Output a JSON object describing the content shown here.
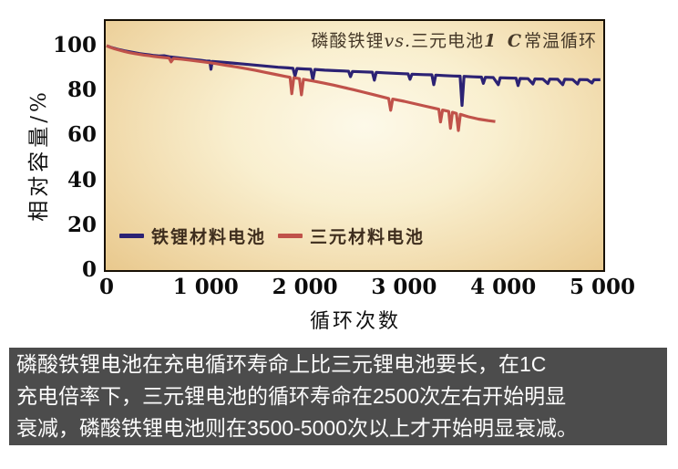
{
  "chart": {
    "title_parts": {
      "pre": "磷酸铁锂",
      "vs": "vs.",
      "mid": "三元电池",
      "bold": "1 C",
      "post": "常温循环"
    },
    "y_axis_title": "相对容量/%",
    "x_axis_title": "循环次数",
    "legend": [
      {
        "label": "铁锂材料电池",
        "color": "#2c2274"
      },
      {
        "label": "三元材料电池",
        "color": "#c0524a"
      }
    ]
  },
  "chart_data": {
    "type": "line",
    "title": "磷酸铁锂vs.三元电池1 C常温循环",
    "xlabel": "循环次数",
    "ylabel": "相对容量/%",
    "xlim": [
      0,
      5000
    ],
    "ylim": [
      0,
      111
    ],
    "grid": false,
    "legend_position": "bottom-left-inside",
    "x_ticks": [
      {
        "v": 0,
        "label": "0"
      },
      {
        "v": 1000,
        "label": "1 000"
      },
      {
        "v": 2000,
        "label": "2 000"
      },
      {
        "v": 3000,
        "label": "3 000"
      },
      {
        "v": 4000,
        "label": "4 000"
      },
      {
        "v": 5000,
        "label": "5 000"
      }
    ],
    "y_ticks": [
      {
        "v": 0,
        "label": "0"
      },
      {
        "v": 20,
        "label": "20"
      },
      {
        "v": 40,
        "label": "40"
      },
      {
        "v": 60,
        "label": "60"
      },
      {
        "v": 80,
        "label": "80"
      },
      {
        "v": 100,
        "label": "100"
      }
    ],
    "series": [
      {
        "name": "铁锂材料电池",
        "color": "#2c2274",
        "points": [
          [
            0,
            100
          ],
          [
            40,
            99.3
          ],
          [
            80,
            98.8
          ],
          [
            130,
            98.2
          ],
          [
            180,
            97.7
          ],
          [
            230,
            97.3
          ],
          [
            280,
            96.9
          ],
          [
            330,
            96.5
          ],
          [
            380,
            96.2
          ],
          [
            430,
            95.9
          ],
          [
            480,
            95.6
          ],
          [
            530,
            95.4
          ],
          [
            580,
            95.5
          ],
          [
            640,
            95.0
          ],
          [
            700,
            94.7
          ],
          [
            760,
            94.4
          ],
          [
            820,
            94.1
          ],
          [
            880,
            93.8
          ],
          [
            940,
            93.5
          ],
          [
            1000,
            93.2
          ],
          [
            1040,
            93.1
          ],
          [
            1052,
            89.5
          ],
          [
            1065,
            93.0
          ],
          [
            1130,
            92.8
          ],
          [
            1230,
            92.4
          ],
          [
            1330,
            92.0
          ],
          [
            1430,
            91.6
          ],
          [
            1530,
            91.2
          ],
          [
            1630,
            90.8
          ],
          [
            1730,
            90.4
          ],
          [
            1830,
            90.1
          ],
          [
            1880,
            89.9
          ],
          [
            1900,
            86.5
          ],
          [
            1920,
            89.8
          ],
          [
            2000,
            89.6
          ],
          [
            2060,
            89.5
          ],
          [
            2080,
            84.8
          ],
          [
            2100,
            89.4
          ],
          [
            2200,
            89.1
          ],
          [
            2300,
            88.9
          ],
          [
            2400,
            88.7
          ],
          [
            2440,
            88.6
          ],
          [
            2460,
            86.2
          ],
          [
            2480,
            88.5
          ],
          [
            2600,
            88.3
          ],
          [
            2680,
            88.2
          ],
          [
            2700,
            84.6
          ],
          [
            2720,
            88.1
          ],
          [
            2800,
            87.9
          ],
          [
            2900,
            87.7
          ],
          [
            3000,
            87.5
          ],
          [
            3040,
            87.4
          ],
          [
            3060,
            85.0
          ],
          [
            3080,
            87.3
          ],
          [
            3200,
            87.1
          ],
          [
            3280,
            87.0
          ],
          [
            3300,
            82.6
          ],
          [
            3320,
            86.9
          ],
          [
            3400,
            86.7
          ],
          [
            3500,
            86.5
          ],
          [
            3565,
            86.4
          ],
          [
            3585,
            73.4
          ],
          [
            3605,
            86.3
          ],
          [
            3700,
            86.1
          ],
          [
            3780,
            86.0
          ],
          [
            3800,
            83.2
          ],
          [
            3820,
            85.9
          ],
          [
            3900,
            85.8
          ],
          [
            3950,
            82.6
          ],
          [
            3970,
            85.7
          ],
          [
            4050,
            85.6
          ],
          [
            4130,
            85.5
          ],
          [
            4150,
            82.2
          ],
          [
            4170,
            85.4
          ],
          [
            4250,
            85.3
          ],
          [
            4300,
            82.9
          ],
          [
            4320,
            85.2
          ],
          [
            4400,
            85.1
          ],
          [
            4450,
            83.1
          ],
          [
            4470,
            85.1
          ],
          [
            4550,
            85.0
          ],
          [
            4600,
            82.6
          ],
          [
            4620,
            85.0
          ],
          [
            4700,
            84.9
          ],
          [
            4750,
            82.9
          ],
          [
            4770,
            84.9
          ],
          [
            4850,
            84.8
          ],
          [
            4895,
            83.4
          ],
          [
            4915,
            84.8
          ],
          [
            4980,
            84.8
          ]
        ]
      },
      {
        "name": "三元材料电池",
        "color": "#c0524a",
        "points": [
          [
            0,
            100
          ],
          [
            40,
            99.2
          ],
          [
            80,
            98.6
          ],
          [
            130,
            98.0
          ],
          [
            180,
            97.4
          ],
          [
            230,
            96.9
          ],
          [
            280,
            96.5
          ],
          [
            330,
            96.1
          ],
          [
            380,
            95.8
          ],
          [
            430,
            95.5
          ],
          [
            480,
            95.2
          ],
          [
            540,
            94.9
          ],
          [
            600,
            94.6
          ],
          [
            630,
            94.5
          ],
          [
            650,
            92.8
          ],
          [
            675,
            94.3
          ],
          [
            750,
            94.0
          ],
          [
            830,
            93.6
          ],
          [
            920,
            93.1
          ],
          [
            1010,
            92.6
          ],
          [
            1100,
            92.0
          ],
          [
            1200,
            91.3
          ],
          [
            1300,
            90.6
          ],
          [
            1400,
            89.8
          ],
          [
            1500,
            89.0
          ],
          [
            1600,
            88.1
          ],
          [
            1700,
            87.2
          ],
          [
            1800,
            86.3
          ],
          [
            1850,
            85.9
          ],
          [
            1868,
            78.6
          ],
          [
            1888,
            85.7
          ],
          [
            1945,
            85.3
          ],
          [
            1965,
            78.1
          ],
          [
            1985,
            85.0
          ],
          [
            2090,
            84.2
          ],
          [
            2190,
            83.3
          ],
          [
            2290,
            82.4
          ],
          [
            2390,
            81.4
          ],
          [
            2490,
            80.4
          ],
          [
            2590,
            79.3
          ],
          [
            2690,
            78.2
          ],
          [
            2790,
            77.1
          ],
          [
            2845,
            76.5
          ],
          [
            2865,
            71.2
          ],
          [
            2885,
            76.2
          ],
          [
            3000,
            75.2
          ],
          [
            3100,
            74.2
          ],
          [
            3200,
            73.2
          ],
          [
            3300,
            72.2
          ],
          [
            3350,
            71.7
          ],
          [
            3368,
            66.0
          ],
          [
            3388,
            71.3
          ],
          [
            3450,
            70.7
          ],
          [
            3468,
            63.2
          ],
          [
            3488,
            70.3
          ],
          [
            3528,
            69.8
          ],
          [
            3548,
            62.2
          ],
          [
            3568,
            69.4
          ],
          [
            3650,
            68.3
          ],
          [
            3750,
            67.3
          ],
          [
            3850,
            66.6
          ],
          [
            3920,
            66.2
          ]
        ]
      }
    ]
  },
  "caption": {
    "lines": [
      "磷酸铁锂电池在充电循环寿命上比三元锂电池要长，在1C",
      "充电倍率下，三元锂电池的循环寿命在2500次左右开始明显",
      "衰减，磷酸铁锂电池则在3500-5000次以上才开始明显衰减。"
    ],
    "bg": "#4c4c4c",
    "fg": "#fcfcfc"
  }
}
